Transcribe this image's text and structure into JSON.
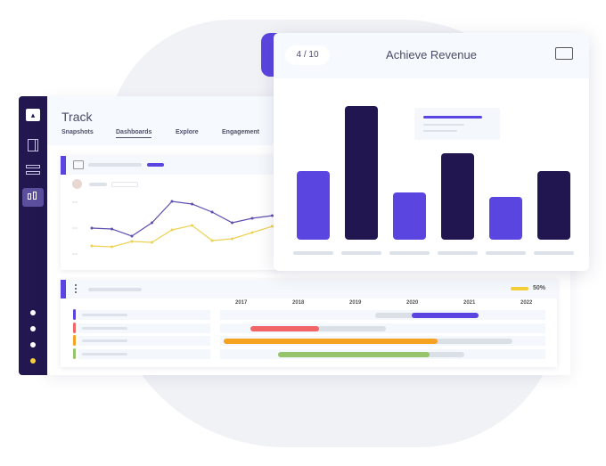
{
  "app": {
    "title": "Track",
    "tabs": [
      "Snapshots",
      "Dashboards",
      "Explore",
      "Engagement"
    ],
    "active_tab": "Dashboards"
  },
  "sidebar": {
    "icons": [
      "logo-icon",
      "panel-icon",
      "toggles-icon",
      "bar-chart-icon"
    ],
    "active": "bar-chart-icon",
    "dots": 4
  },
  "line_chart": {
    "series": [
      {
        "name": "purple",
        "color": "#5b4fb0",
        "values": [
          34,
          33,
          25,
          40,
          64,
          61,
          52,
          40,
          45,
          48
        ]
      },
      {
        "name": "yellow",
        "color": "#ecd253",
        "values": [
          14,
          13,
          19,
          18,
          32,
          37,
          20,
          22,
          29,
          36
        ]
      }
    ]
  },
  "revenue": {
    "step": "4 / 10",
    "title": "Achieve Revenue",
    "values": [
      77,
      150,
      53,
      97,
      48,
      77
    ],
    "colors": [
      "#5b45e0",
      "#221650",
      "#5b45e0",
      "#221650",
      "#5b45e0",
      "#221650"
    ]
  },
  "gantt": {
    "progress_label": "50%",
    "progress_color": "#f5cf3a",
    "years": [
      "2017",
      "2018",
      "2019",
      "2020",
      "2021",
      "2022"
    ],
    "rows": [
      {
        "color": "#5b45e0",
        "start": 2019.34,
        "fill_start": 2019.98,
        "fill_end": 2021.16,
        "end": 2021.16
      },
      {
        "color": "#f26567",
        "start": 2017.16,
        "fill_start": 2017.16,
        "fill_end": 2018.36,
        "end": 2019.53
      },
      {
        "color": "#f6a221",
        "start": 2016.69,
        "fill_start": 2016.69,
        "fill_end": 2020.44,
        "end": 2021.75
      },
      {
        "color": "#96c46a",
        "start": 2017.64,
        "fill_start": 2017.64,
        "fill_end": 2020.3,
        "end": 2020.9
      }
    ]
  }
}
